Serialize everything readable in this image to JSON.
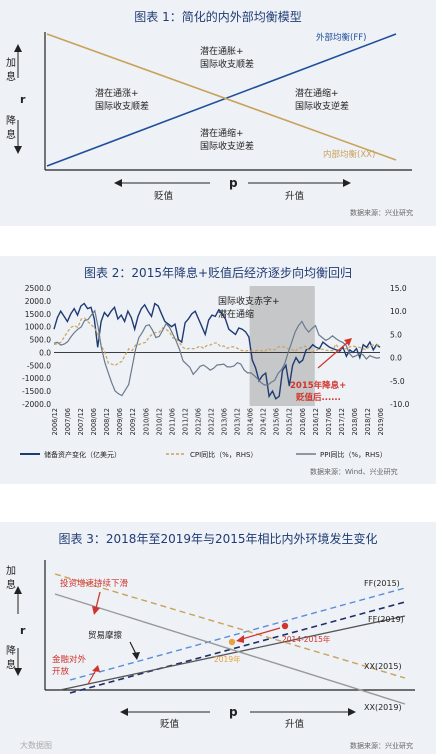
{
  "chart_data": [
    {
      "type": "diagram",
      "title": "图表 1：简化的内外部均衡模型",
      "line_labels": {
        "ff": "外部均衡(FF)",
        "xx": "内部均衡(XX)"
      },
      "y_top": [
        "加",
        "息"
      ],
      "y_mid": "r",
      "y_bottom": [
        "降",
        "息"
      ],
      "x_mid": "p",
      "x_left": "贬值",
      "x_right": "升值",
      "regions": [
        {
          "id": "top",
          "lines": [
            "潜在通胀+",
            "国际收支顺差"
          ]
        },
        {
          "id": "left",
          "lines": [
            "潜在通涨+",
            "国际收支顺差"
          ]
        },
        {
          "id": "right",
          "lines": [
            "潜在通缩+",
            "国际收支逆差"
          ]
        },
        {
          "id": "bottom",
          "lines": [
            "潜在通缩+",
            "国际收支逆差"
          ]
        }
      ],
      "source": "数据来源：兴业研究"
    },
    {
      "type": "line",
      "title": "图表 2：2015年降息+贬值后经济逐步向均衡回归",
      "left_axis": {
        "ticks": [
          2500,
          2000,
          1500,
          1000,
          500,
          0,
          -500,
          -1000,
          -1500,
          -2000
        ],
        "labels": [
          "2500.0",
          "2000.0",
          "1500.0",
          "1000.0",
          "500.0",
          "0.0",
          "-500.0",
          "-1000.0",
          "-1500.0",
          "-2000.0"
        ],
        "ylim": [
          -2000,
          2500
        ]
      },
      "right_axis": {
        "ticks": [
          15,
          10,
          5,
          0,
          -5,
          -10
        ],
        "labels": [
          "15.0",
          "10.0",
          "5.0",
          "0.0",
          "-5.0",
          "-10.0"
        ],
        "ylim": [
          -10,
          15
        ]
      },
      "x_ticks": [
        "2006/12",
        "2007/06",
        "2007/12",
        "2008/06",
        "2008/12",
        "2009/06",
        "2009/12",
        "2010/06",
        "2010/12",
        "2011/06",
        "2011/12",
        "2012/06",
        "2012/12",
        "2013/06",
        "2013/12",
        "2014/06",
        "2014/12",
        "2015/06",
        "2015/12",
        "2016/06",
        "2016/12",
        "2017/06",
        "2017/12",
        "2018/06",
        "2018/12",
        "2019/06"
      ],
      "series": [
        {
          "name": "储备资产变化（亿美元）",
          "axis": "left",
          "color": "#1f3b73",
          "values": [
            900,
            1350,
            1600,
            1400,
            1200,
            1500,
            1700,
            1450,
            1800,
            1900,
            1700,
            1750,
            1300,
            200,
            1200,
            1550,
            1400,
            1600,
            1750,
            1300,
            1450,
            1200,
            1600,
            1350,
            900,
            1400,
            1700,
            1850,
            1600,
            1400,
            1900,
            1800,
            1500,
            1200,
            1100,
            1000,
            1100,
            500,
            400,
            1150,
            1300,
            1500,
            1600,
            1300,
            1000,
            700,
            1250,
            1450,
            1400,
            1650,
            1500,
            1300,
            900,
            800,
            700,
            950,
            900,
            800,
            600,
            -300,
            -600,
            -1100,
            -900,
            -800,
            -1700,
            -1500,
            -1800,
            -1700,
            -700,
            -500,
            -1300,
            -500,
            -200,
            -400,
            -300,
            100,
            150,
            300,
            200,
            150,
            400,
            300,
            200,
            150,
            100,
            50,
            200,
            -150,
            100,
            0,
            150,
            -200,
            300,
            200,
            400,
            100,
            300,
            200
          ]
        },
        {
          "name": "CPI同比（%，RHS）",
          "axis": "right",
          "color": "#c9a25b",
          "dash": "3,2",
          "values": [
            2.8,
            3.0,
            3.3,
            4.4,
            5.6,
            6.5,
            6.9,
            6.5,
            8.3,
            8.5,
            7.7,
            7.1,
            6.3,
            4.9,
            2.4,
            1.2,
            -1.2,
            -1.4,
            -1.7,
            -1.2,
            -0.8,
            0.6,
            1.9,
            1.5,
            2.7,
            2.8,
            3.1,
            3.3,
            4.4,
            5.1,
            5.4,
            5.5,
            6.4,
            6.1,
            5.5,
            4.2,
            4.1,
            3.2,
            2.2,
            1.8,
            2.0,
            1.9,
            2.1,
            2.5,
            2.0,
            2.6,
            2.7,
            3.1,
            3.2,
            2.4,
            2.5,
            2.0,
            2.3,
            2.3,
            2.0,
            1.6,
            1.4,
            1.5,
            1.4,
            1.4,
            1.6,
            1.5,
            1.3,
            2.0,
            1.6,
            1.7,
            2.3,
            2.3,
            2.3,
            1.9,
            1.8,
            1.3,
            2.1,
            2.1,
            2.5,
            1.6,
            1.2,
            1.5,
            1.8,
            1.8,
            1.6,
            1.5,
            1.5,
            2.9,
            1.8,
            1.8,
            1.9,
            2.3,
            2.5,
            2.3,
            2.2,
            1.9,
            1.7,
            2.5,
            2.7,
            2.7,
            2.7
          ]
        },
        {
          "name": "PPI同比（%，RHS）",
          "axis": "right",
          "color": "#6a7a8c",
          "values": [
            3.1,
            3.3,
            2.7,
            2.9,
            3.4,
            4.5,
            5.4,
            6.1,
            6.6,
            8.0,
            8.2,
            9.2,
            10.1,
            6.6,
            2.0,
            -1.1,
            -3.3,
            -5.4,
            -7.2,
            -7.8,
            -8.2,
            -7.0,
            -5.8,
            -2.1,
            1.7,
            4.3,
            5.4,
            6.8,
            7.1,
            5.9,
            4.3,
            4.6,
            5.9,
            7.3,
            6.5,
            5.0,
            3.5,
            1.7,
            -0.7,
            -1.4,
            -2.1,
            -3.6,
            -2.8,
            -1.9,
            -1.6,
            -2.1,
            -2.7,
            -2.3,
            -1.6,
            -1.5,
            -1.4,
            -2.0,
            -2.0,
            -1.8,
            -1.1,
            -1.4,
            -2.7,
            -3.3,
            -3.3,
            -3.9,
            -4.6,
            -5.4,
            -5.9,
            -5.9,
            -5.3,
            -4.9,
            -3.4,
            -2.6,
            -1.2,
            1.2,
            3.3,
            5.5,
            6.9,
            7.8,
            6.4,
            5.5,
            6.3,
            6.9,
            4.9,
            4.3,
            3.7,
            4.1,
            4.7,
            4.1,
            3.6,
            3.3,
            2.7,
            0.9,
            0.1,
            0.4,
            0.9,
            0.6,
            -0.3,
            0.4,
            0.1,
            -0.1,
            0.0
          ]
        }
      ],
      "shaded_label": [
        "国际收支赤字+",
        "潜在通缩"
      ],
      "shaded_range": [
        "2014/06",
        "2016/12"
      ],
      "annotation": [
        "2015年降息+",
        "贬值后......"
      ],
      "source": "数据来源：Wind、兴业研究"
    },
    {
      "type": "diagram",
      "title": "图表 3：2018年至2019年与2015年相比内外环境发生变化",
      "y_top": [
        "加",
        "息"
      ],
      "y_mid": "r",
      "y_bottom": [
        "降",
        "息"
      ],
      "x_mid": "p",
      "x_left": "贬值",
      "x_right": "升值",
      "line_labels": {
        "ff2015": "FF(2015)",
        "ff2019": "FF(2019)",
        "xx2015": "XX(2015)",
        "xx2019": "XX(2019)"
      },
      "annotations": {
        "invest": "投资增速持续下滑",
        "trade": "贸易摩擦",
        "finance": [
          "金融对外",
          "开放"
        ],
        "p2014": "2014-2015年",
        "p2019": "2019年"
      },
      "source": "数据来源：兴业研究"
    }
  ],
  "watermark": "大数据图"
}
